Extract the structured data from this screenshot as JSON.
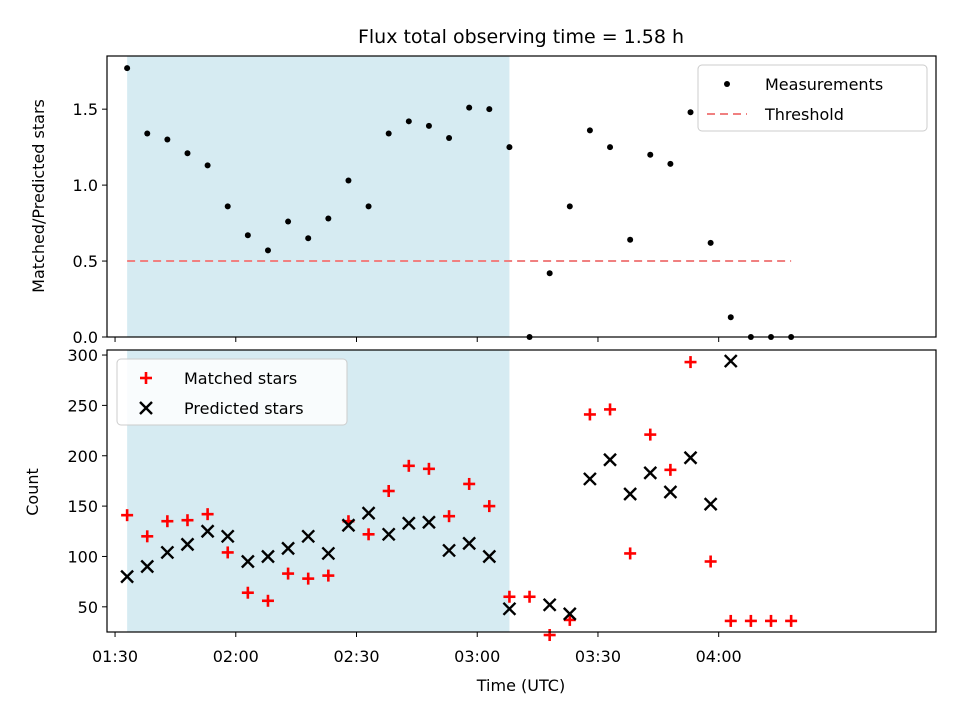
{
  "chart_data": {
    "title": "Flux total observing time = 1.58 h",
    "xlabel": "Time (UTC)",
    "x_ticks": [
      "01:30",
      "02:00",
      "02:30",
      "03:00",
      "03:30",
      "04:00"
    ],
    "xlim": [
      "01:28",
      "04:54"
    ],
    "shaded_span": {
      "start": "01:33",
      "end": "03:08",
      "color": "#add8e6"
    },
    "panels": [
      {
        "type": "scatter",
        "ylabel": "Matched/Predicted stars",
        "ylim": [
          0,
          1.85
        ],
        "y_ticks": [
          0.0,
          0.5,
          1.0,
          1.5
        ],
        "y_tick_labels": [
          "0.0",
          "0.5",
          "1.0",
          "1.5"
        ],
        "legend_position": "top-right",
        "series": [
          {
            "name": "Measurements",
            "marker": "dot",
            "color": "#000000",
            "points": [
              [
                "01:33",
                1.77
              ],
              [
                "01:38",
                1.34
              ],
              [
                "01:43",
                1.3
              ],
              [
                "01:48",
                1.21
              ],
              [
                "01:53",
                1.13
              ],
              [
                "01:58",
                0.86
              ],
              [
                "02:03",
                0.67
              ],
              [
                "02:08",
                0.57
              ],
              [
                "02:13",
                0.76
              ],
              [
                "02:18",
                0.65
              ],
              [
                "02:23",
                0.78
              ],
              [
                "02:28",
                1.03
              ],
              [
                "02:33",
                0.86
              ],
              [
                "02:38",
                1.34
              ],
              [
                "02:43",
                1.42
              ],
              [
                "02:48",
                1.39
              ],
              [
                "02:53",
                1.31
              ],
              [
                "02:58",
                1.51
              ],
              [
                "03:03",
                1.5
              ],
              [
                "03:08",
                1.25
              ],
              [
                "03:13",
                0.0
              ],
              [
                "03:18",
                0.42
              ],
              [
                "03:23",
                0.86
              ],
              [
                "03:28",
                1.36
              ],
              [
                "03:33",
                1.25
              ],
              [
                "03:38",
                0.64
              ],
              [
                "03:43",
                1.2
              ],
              [
                "03:48",
                1.14
              ],
              [
                "03:53",
                1.48
              ],
              [
                "03:58",
                0.62
              ],
              [
                "04:03",
                0.13
              ],
              [
                "04:08",
                0.0
              ],
              [
                "04:13",
                0.0
              ],
              [
                "04:18",
                0.0
              ]
            ]
          },
          {
            "name": "Threshold",
            "marker": "dashed-line",
            "color": "#f08080",
            "points": [
              [
                "01:33",
                0.5
              ],
              [
                "04:18",
                0.5
              ]
            ]
          }
        ]
      },
      {
        "type": "scatter",
        "ylabel": "Count",
        "ylim": [
          25,
          305
        ],
        "y_ticks": [
          50,
          100,
          150,
          200,
          250,
          300
        ],
        "y_tick_labels": [
          "50",
          "100",
          "150",
          "200",
          "250",
          "300"
        ],
        "legend_position": "top-left",
        "series": [
          {
            "name": "Matched stars",
            "marker": "plus",
            "color": "#ff0000",
            "points": [
              [
                "01:33",
                141
              ],
              [
                "01:38",
                120
              ],
              [
                "01:43",
                135
              ],
              [
                "01:48",
                136
              ],
              [
                "01:53",
                142
              ],
              [
                "01:58",
                104
              ],
              [
                "02:03",
                64
              ],
              [
                "02:08",
                56
              ],
              [
                "02:13",
                83
              ],
              [
                "02:18",
                78
              ],
              [
                "02:23",
                81
              ],
              [
                "02:28",
                135
              ],
              [
                "02:33",
                122
              ],
              [
                "02:38",
                165
              ],
              [
                "02:43",
                190
              ],
              [
                "02:48",
                187
              ],
              [
                "02:53",
                140
              ],
              [
                "02:58",
                172
              ],
              [
                "03:03",
                150
              ],
              [
                "03:08",
                60
              ],
              [
                "03:13",
                60
              ],
              [
                "03:18",
                22
              ],
              [
                "03:23",
                37
              ],
              [
                "03:28",
                241
              ],
              [
                "03:33",
                246
              ],
              [
                "03:38",
                103
              ],
              [
                "03:43",
                221
              ],
              [
                "03:48",
                186
              ],
              [
                "03:53",
                293
              ],
              [
                "03:58",
                95
              ],
              [
                "04:03",
                36
              ],
              [
                "04:08",
                36
              ],
              [
                "04:13",
                36
              ],
              [
                "04:18",
                36
              ]
            ]
          },
          {
            "name": "Predicted stars",
            "marker": "x",
            "color": "#000000",
            "points": [
              [
                "01:33",
                80
              ],
              [
                "01:38",
                90
              ],
              [
                "01:43",
                104
              ],
              [
                "01:48",
                112
              ],
              [
                "01:53",
                125
              ],
              [
                "01:58",
                120
              ],
              [
                "02:03",
                95
              ],
              [
                "02:08",
                100
              ],
              [
                "02:13",
                108
              ],
              [
                "02:18",
                120
              ],
              [
                "02:23",
                103
              ],
              [
                "02:28",
                131
              ],
              [
                "02:33",
                143
              ],
              [
                "02:38",
                122
              ],
              [
                "02:43",
                133
              ],
              [
                "02:48",
                134
              ],
              [
                "02:53",
                106
              ],
              [
                "02:58",
                113
              ],
              [
                "03:03",
                100
              ],
              [
                "03:08",
                48
              ],
              [
                "03:18",
                52
              ],
              [
                "03:23",
                43
              ],
              [
                "03:28",
                177
              ],
              [
                "03:33",
                196
              ],
              [
                "03:38",
                162
              ],
              [
                "03:43",
                183
              ],
              [
                "03:48",
                164
              ],
              [
                "03:53",
                198
              ],
              [
                "03:58",
                152
              ],
              [
                "04:03",
                294
              ]
            ]
          }
        ]
      }
    ]
  }
}
